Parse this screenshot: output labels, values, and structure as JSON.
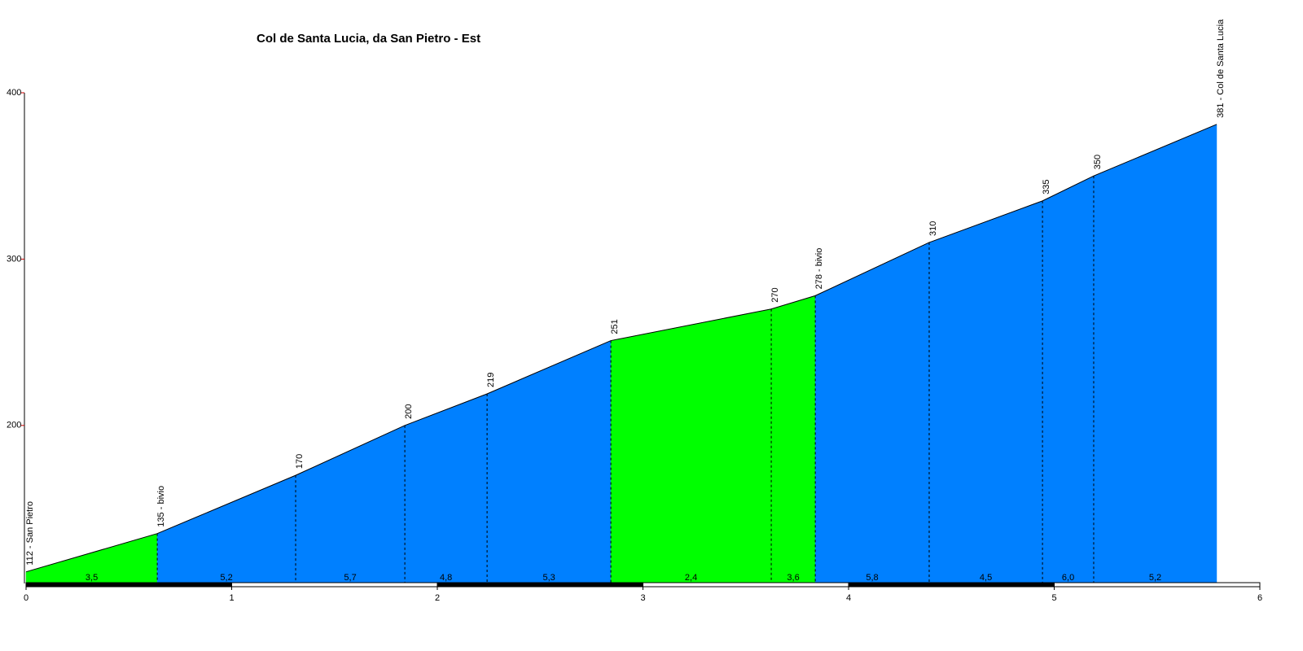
{
  "chart_data": {
    "type": "area",
    "title": "Col de Santa Lucia, da San Pietro - Est",
    "x": [
      0,
      0.638,
      1.311,
      1.842,
      2.242,
      2.844,
      3.624,
      3.838,
      4.392,
      4.943,
      5.192,
      5.79
    ],
    "values": [
      112,
      135,
      170,
      200,
      219,
      251,
      270,
      278,
      310,
      335,
      350,
      381
    ],
    "point_labels": [
      "112 - San Pietro",
      "135 - bivio",
      "170",
      "200",
      "219",
      "251",
      "270",
      "278 - bivio",
      "310",
      "335",
      "350",
      "381 - Col de Santa Lucia"
    ],
    "segments": {
      "values": [
        3.5,
        5.2,
        5.7,
        4.8,
        5.3,
        2.4,
        3.6,
        5.8,
        4.5,
        6.0,
        5.2
      ],
      "value_labels": [
        "3,5",
        "5,2",
        "5,7",
        "4,8",
        "5,3",
        "2,4",
        "3,6",
        "5,8",
        "4,5",
        "6,0",
        "5,2"
      ],
      "colors": [
        "#00ff00",
        "#0080ff",
        "#0080ff",
        "#0080ff",
        "#0080ff",
        "#00ff00",
        "#00ff00",
        "#0080ff",
        "#0080ff",
        "#0080ff",
        "#0080ff"
      ]
    },
    "xlim": [
      0,
      6
    ],
    "xticks": [
      0,
      1,
      2,
      3,
      4,
      5,
      6
    ],
    "ylim": [
      105,
      400
    ],
    "yticks": [
      200,
      300,
      400
    ]
  }
}
